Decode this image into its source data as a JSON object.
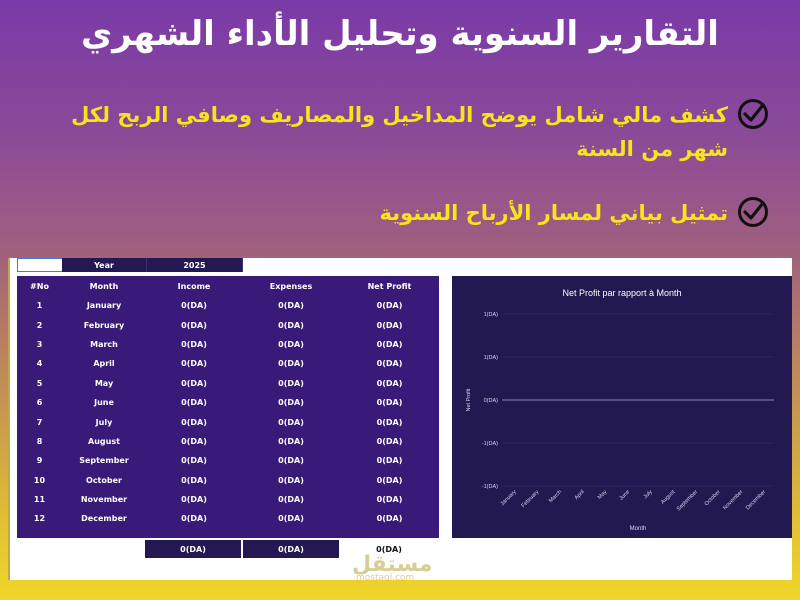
{
  "title": "التقارير السنوية وتحليل الأداء الشهري",
  "bullets": [
    "كشف مالي شامل يوضح المداخيل والمصاريف وصافي الربح لكل شهر من السنة",
    "تمثيل بياني لمسار الأرباح السنوية"
  ],
  "sheet": {
    "year_label": "Year",
    "year_value": "2025",
    "headers": [
      "#No",
      "Month",
      "Income",
      "Expenses",
      "Net Profit"
    ],
    "rows": [
      [
        "1",
        "January",
        "0(DA)",
        "0(DA)",
        "0(DA)"
      ],
      [
        "2",
        "February",
        "0(DA)",
        "0(DA)",
        "0(DA)"
      ],
      [
        "3",
        "March",
        "0(DA)",
        "0(DA)",
        "0(DA)"
      ],
      [
        "4",
        "April",
        "0(DA)",
        "0(DA)",
        "0(DA)"
      ],
      [
        "5",
        "May",
        "0(DA)",
        "0(DA)",
        "0(DA)"
      ],
      [
        "6",
        "June",
        "0(DA)",
        "0(DA)",
        "0(DA)"
      ],
      [
        "7",
        "July",
        "0(DA)",
        "0(DA)",
        "0(DA)"
      ],
      [
        "8",
        "August",
        "0(DA)",
        "0(DA)",
        "0(DA)"
      ],
      [
        "9",
        "September",
        "0(DA)",
        "0(DA)",
        "0(DA)"
      ],
      [
        "10",
        "October",
        "0(DA)",
        "0(DA)",
        "0(DA)"
      ],
      [
        "11",
        "November",
        "0(DA)",
        "0(DA)",
        "0(DA)"
      ],
      [
        "12",
        "December",
        "0(DA)",
        "0(DA)",
        "0(DA)"
      ]
    ],
    "totals": [
      "0(DA)",
      "0(DA)",
      "0(DA)"
    ]
  },
  "chart_data": {
    "type": "line",
    "title": "Net Profit par rapport à Month",
    "xlabel": "Month",
    "ylabel": "Net Profit",
    "categories": [
      "January",
      "February",
      "March",
      "April",
      "May",
      "June",
      "July",
      "August",
      "September",
      "October",
      "November",
      "December"
    ],
    "yticks": [
      "1(DA)",
      "1(DA)",
      "0(DA)",
      "-1(DA)",
      "-1(DA)"
    ],
    "ylim": [
      -1,
      1
    ],
    "series": [
      {
        "values": [
          0,
          0,
          0,
          0,
          0,
          0,
          0,
          0,
          0,
          0,
          0,
          0
        ]
      }
    ],
    "grid": true
  },
  "watermark": {
    "main": "مستقل",
    "sub": "mostaql.com"
  },
  "colors": {
    "accent": "#f7e51c",
    "table_bg": "#3a1a78",
    "chart_bg": "#221950"
  },
  "icons": {
    "bullet": "check-circle-icon"
  }
}
